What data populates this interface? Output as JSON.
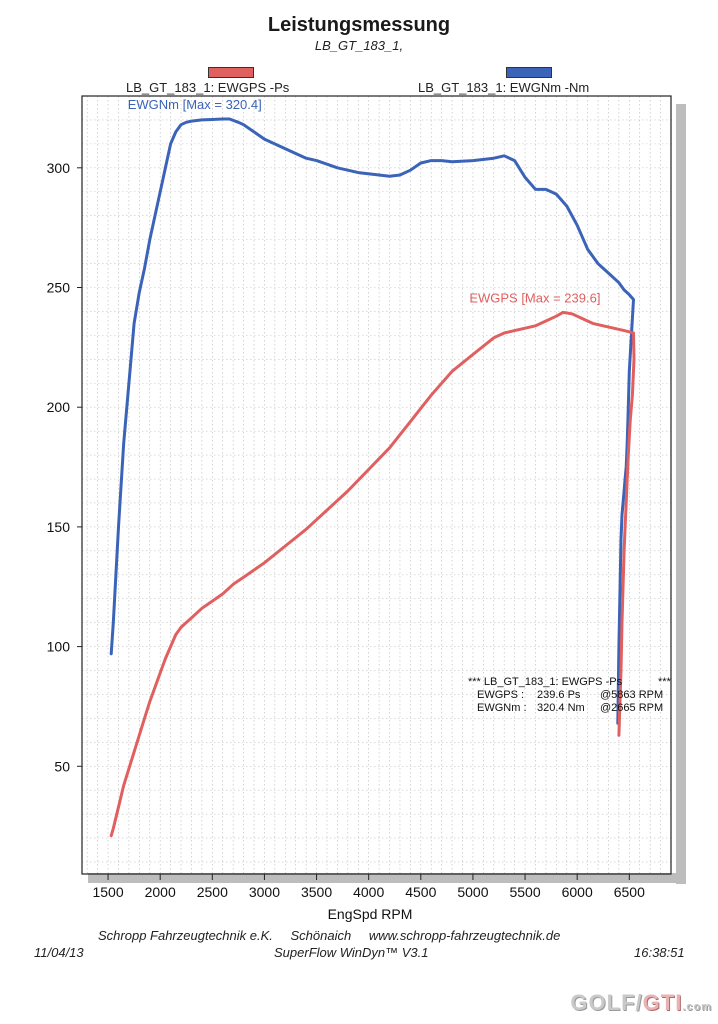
{
  "header": {
    "title": "Leistungsmessung",
    "subtitle": "LB_GT_183_1,"
  },
  "legend": [
    {
      "label": "LB_GT_183_1: EWGPS -Ps",
      "color": "#e06060"
    },
    {
      "label": "LB_GT_183_1: EWGNm -Nm",
      "color": "#3b63b8"
    }
  ],
  "annotation": {
    "header": "*** LB_GT_183_1: EWGPS -Ps",
    "header_tail": "***",
    "rows": [
      {
        "name": "EWGPS :",
        "value": "239.6 Ps",
        "at": "@5863 RPM"
      },
      {
        "name": "EWGNm :",
        "value": "320.4 Nm",
        "at": "@2665 RPM"
      }
    ]
  },
  "footer": {
    "company": "Schropp Fahrzeugtechnik e.K.",
    "city": "Schönaich",
    "website": "www.schropp-fahrzeugtechnik.de",
    "date": "11/04/13",
    "software": "SuperFlow WinDyn™ V3.1",
    "time": "16:38:51"
  },
  "watermark": {
    "part1": "GOLF",
    "part2": "GTI",
    "part3": ".com"
  },
  "chart_data": {
    "type": "line",
    "title": "Leistungsmessung",
    "xlabel": "EngSpd RPM",
    "ylabel": "",
    "xlim": [
      1250,
      6900
    ],
    "ylim": [
      5,
      330
    ],
    "xticks": [
      1500,
      2000,
      2500,
      3000,
      3500,
      4000,
      4500,
      5000,
      5500,
      6000,
      6500
    ],
    "yticks": [
      50,
      100,
      150,
      200,
      250,
      300
    ],
    "grid": true,
    "series": [
      {
        "name": "EWGNm",
        "label": "EWGNm  [Max = 320.4]",
        "color": "#3b63b8",
        "x": [
          1530,
          1550,
          1600,
          1650,
          1700,
          1750,
          1800,
          1850,
          1900,
          1950,
          2000,
          2050,
          2100,
          2150,
          2200,
          2250,
          2300,
          2400,
          2500,
          2600,
          2665,
          2750,
          2800,
          2900,
          3000,
          3200,
          3400,
          3500,
          3700,
          3900,
          4100,
          4200,
          4300,
          4400,
          4500,
          4600,
          4700,
          4800,
          5000,
          5200,
          5300,
          5400,
          5500,
          5600,
          5700,
          5800,
          5900,
          6000,
          6100,
          6200,
          6300,
          6400,
          6450,
          6500,
          6540,
          6520,
          6500,
          6490,
          6480,
          6470,
          6460,
          6450,
          6430,
          6420,
          6400,
          6390
        ],
        "y": [
          97,
          110,
          150,
          185,
          210,
          235,
          248,
          258,
          270,
          280,
          290,
          300,
          310,
          315,
          318,
          319,
          319.5,
          320,
          320.2,
          320.4,
          320.4,
          319,
          318,
          315,
          312,
          308,
          304,
          303,
          300,
          298,
          297,
          296.5,
          297,
          299,
          302,
          303,
          303,
          302.5,
          303,
          304,
          305,
          303,
          296,
          291,
          291,
          289,
          284,
          276,
          266,
          260,
          256,
          252,
          249,
          247,
          245,
          230,
          215,
          200,
          185,
          175,
          170,
          165,
          155,
          145,
          100,
          68
        ]
      },
      {
        "name": "EWGPS",
        "label": "EWGPS  [Max = 239.6]",
        "color": "#e06060",
        "x": [
          1530,
          1550,
          1600,
          1650,
          1700,
          1750,
          1800,
          1850,
          1900,
          1950,
          2000,
          2050,
          2100,
          2150,
          2200,
          2250,
          2300,
          2400,
          2500,
          2600,
          2700,
          2800,
          3000,
          3200,
          3400,
          3600,
          3800,
          4000,
          4200,
          4400,
          4600,
          4800,
          5000,
          5200,
          5300,
          5400,
          5500,
          5600,
          5700,
          5800,
          5863,
          5950,
          6050,
          6150,
          6250,
          6350,
          6450,
          6500,
          6540,
          6545,
          6530,
          6510,
          6490,
          6480,
          6470,
          6460,
          6450,
          6430,
          6420,
          6400
        ],
        "y": [
          21,
          24,
          33,
          42,
          49,
          56,
          63,
          70,
          77,
          83,
          89,
          95,
          100,
          105,
          108,
          110,
          112,
          116,
          119,
          122,
          126,
          129,
          135,
          142,
          149,
          157,
          165,
          174,
          183,
          194,
          205,
          215,
          222,
          229,
          231,
          232,
          233,
          234,
          236,
          238,
          239.6,
          239,
          237,
          235,
          234,
          233,
          232,
          231.5,
          231,
          220,
          205,
          195,
          180,
          170,
          160,
          150,
          140,
          110,
          90,
          63
        ]
      }
    ]
  }
}
